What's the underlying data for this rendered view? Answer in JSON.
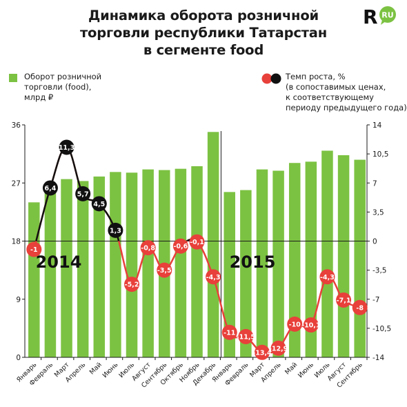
{
  "title_lines": [
    "Динамика оборота розничной",
    "торговли республики Татарстан",
    "в сегменте food"
  ],
  "logo_text": "RU",
  "colors": {
    "bar": "#7cc242",
    "line_black": "#111111",
    "line_red": "#e8403a",
    "axis": "#1a1a1a"
  },
  "chart_data": {
    "type": "bar",
    "categories": [
      "Январь",
      "Февраль",
      "Март",
      "Апрель",
      "Май",
      "Июнь",
      "Июль",
      "Август",
      "Сентябрь",
      "Октябрь",
      "Ноябрь",
      "Декабрь",
      "Январь",
      "Февраль",
      "Март",
      "Апрель",
      "Май",
      "Июнь",
      "Июль",
      "Август",
      "Сентябрь"
    ],
    "year_labels": [
      "2014",
      "2015"
    ],
    "series": [
      {
        "name": "Оборот розничной торговли (food), млрд ₽",
        "axis": "left",
        "values": [
          24.0,
          26.6,
          27.6,
          27.3,
          28.0,
          28.7,
          28.6,
          29.1,
          29.0,
          29.2,
          29.6,
          34.9,
          25.6,
          25.9,
          29.1,
          28.9,
          30.1,
          30.3,
          32.0,
          31.3,
          30.6
        ]
      },
      {
        "name": "Темп роста, %",
        "axis": "right",
        "values": [
          -1,
          6.4,
          11.3,
          5.7,
          4.5,
          1.3,
          -5.2,
          -0.8,
          -3.5,
          -0.6,
          -0.1,
          -4.3,
          -11,
          -11.5,
          -13.4,
          -12.9,
          -10,
          -10.1,
          -4.3,
          -7.1,
          -8
        ],
        "labels": [
          "-1",
          "6,4",
          "11,3",
          "5,7",
          "4,5",
          "1,3",
          "-5,2",
          "-0,8",
          "-3,5",
          "-0,6",
          "-0,1",
          "-4,3",
          "-11",
          "-11,5",
          "-13,4",
          "-12,9",
          "-10",
          "-10,1",
          "-4,3",
          "-7,1",
          "-8"
        ]
      }
    ],
    "left_axis": {
      "ylim": [
        0,
        36
      ],
      "ticks": [
        "0",
        "9",
        "18",
        "27",
        "36"
      ]
    },
    "right_axis": {
      "ylim": [
        -14,
        14
      ],
      "ticks": [
        "-14",
        "-10,5",
        "-7",
        "-3,5",
        "0",
        "3,5",
        "7",
        "10,5",
        "14"
      ]
    }
  },
  "legend": {
    "bars_lines": [
      "Оборот розничной",
      "торговли (food),",
      "млрд ₽"
    ],
    "line_lines": [
      "Темп роста, %",
      "(в сопоставимых ценах,",
      "к соответствующему",
      "периоду предыдущего года)"
    ]
  }
}
